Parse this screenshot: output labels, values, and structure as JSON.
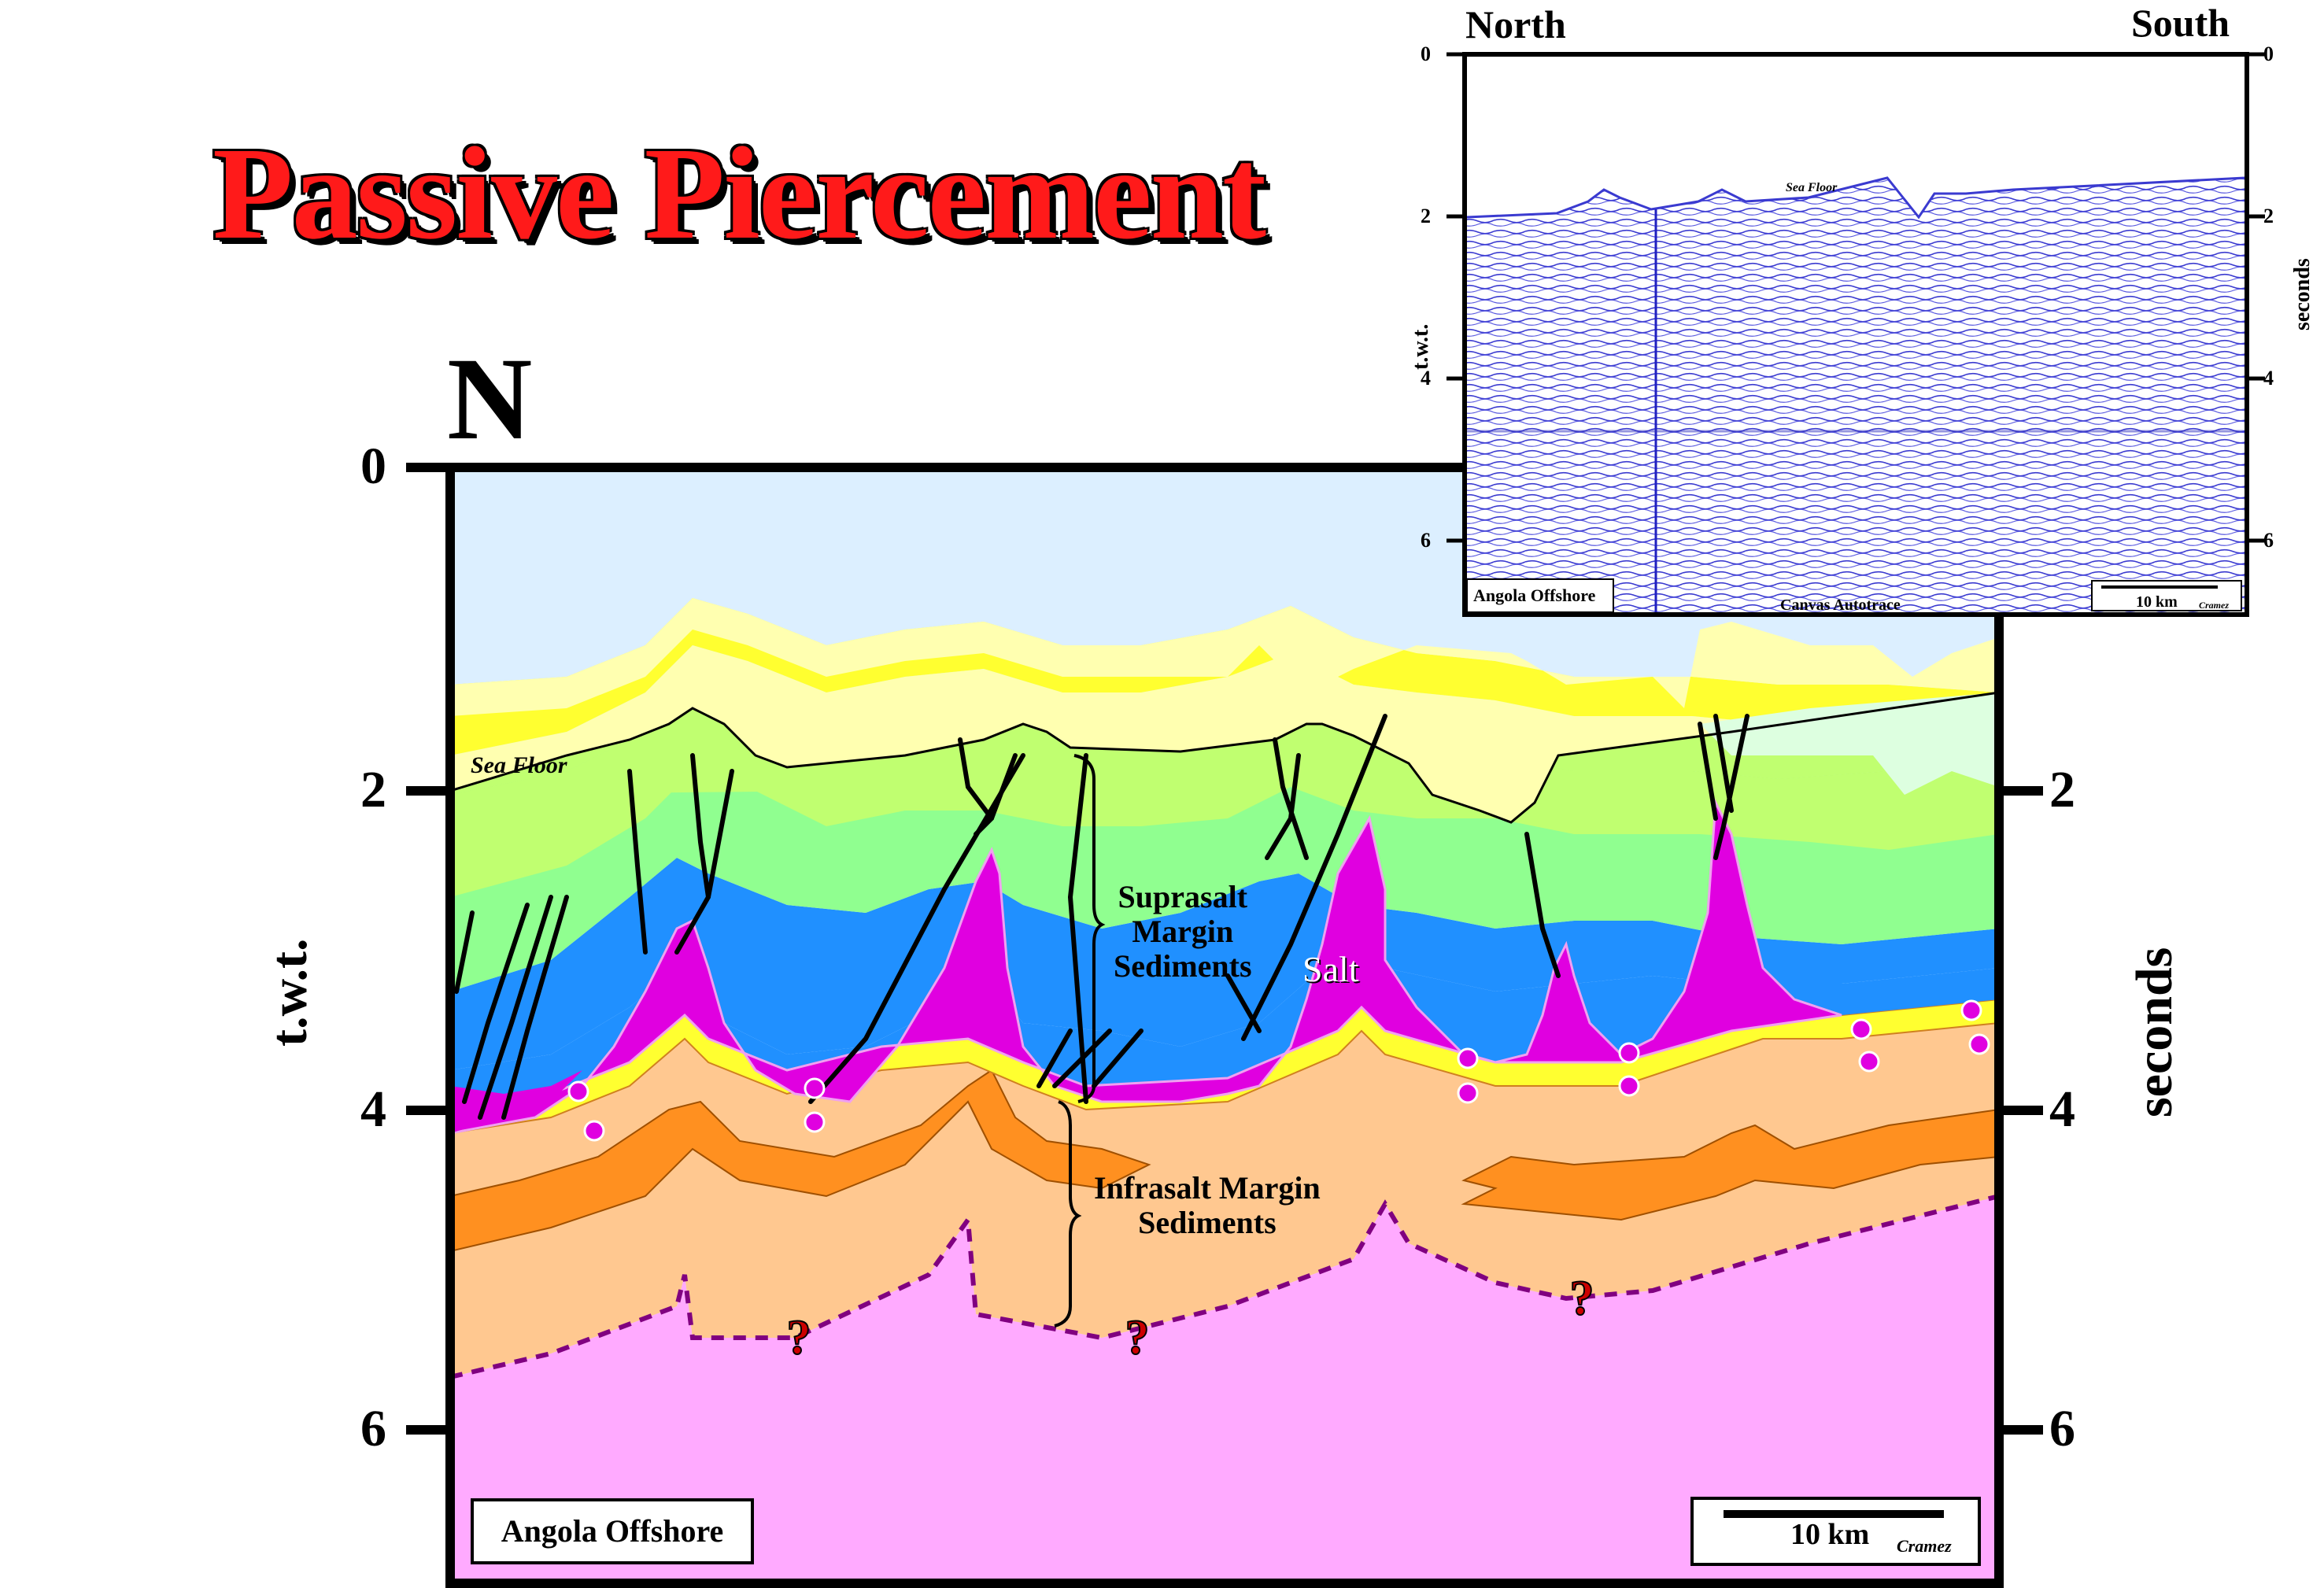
{
  "title": "Passive Piercement",
  "main_section": {
    "orientation_label": "N",
    "y_ticks": [
      "0",
      "2",
      "4",
      "6"
    ],
    "y_axis_left": "t.w.t.",
    "y_axis_right": "seconds",
    "labels": {
      "sea_floor": "Sea Floor",
      "suprasalt": [
        "Suprasalt",
        "Margin",
        "Sediments"
      ],
      "salt": "Salt",
      "infrasalt": [
        "Infrasalt Margin",
        "Sediments"
      ],
      "question": "?"
    },
    "location_box": "Angola Offshore",
    "scale_label": "10 km",
    "credit": "Cramez"
  },
  "inset": {
    "left_label": "North",
    "right_label": "South",
    "y_ticks": [
      "0",
      "2",
      "4",
      "6"
    ],
    "y_axis_left": "t.w.t.",
    "y_axis_right": "seconds",
    "sea_floor": "Sea Floor",
    "location_box": "Angola Offshore",
    "center_label": "Canvas Autotrace",
    "scale_label": "10 km",
    "credit": "Cramez"
  },
  "colors": {
    "water": "#dcefff",
    "salt": "#e000e0",
    "basement": "#ffaaff",
    "infrasalt_light": "#ffc890",
    "infrasalt_dark": "#ff9020",
    "blue_layer": "#2090ff",
    "green_light": "#90ff90",
    "green_yellow": "#c0ff70",
    "yellow": "#ffff30",
    "pale_yellow": "#ffffb0",
    "seismic": "#3333cc"
  }
}
